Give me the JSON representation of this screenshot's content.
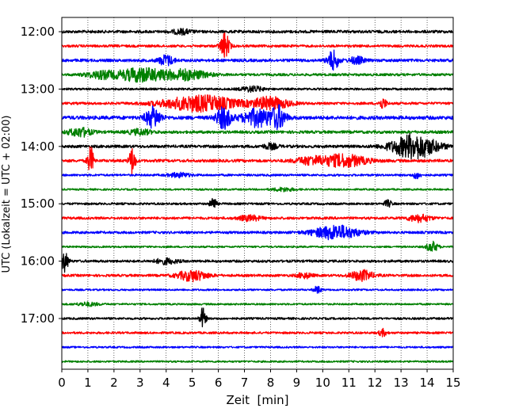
{
  "chart_data": {
    "type": "line",
    "title": "",
    "xlabel": "Zeit  [min]",
    "ylabel": "UTC (Lokalzeit = UTC + 02:00)",
    "xlim": [
      0,
      15
    ],
    "x_ticks": [
      "0",
      "1",
      "2",
      "3",
      "4",
      "5",
      "6",
      "7",
      "8",
      "9",
      "10",
      "11",
      "12",
      "13",
      "14",
      "15"
    ],
    "y_tick_labels": [
      "12:00",
      "13:00",
      "14:00",
      "15:00",
      "16:00",
      "17:00"
    ],
    "grid": {
      "x": "dotted",
      "y": "off"
    },
    "trace_colors": [
      "#000000",
      "#ff0000",
      "#0000ff",
      "#008000"
    ],
    "traces": [
      {
        "start": "12:00",
        "noise": 0.8,
        "events": [
          [
            4.6,
            0.25,
            1.3
          ]
        ]
      },
      {
        "start": "12:15",
        "noise": 0.7,
        "events": [
          [
            6.25,
            0.12,
            7.5
          ]
        ]
      },
      {
        "start": "12:30",
        "noise": 0.8,
        "events": [
          [
            4.0,
            0.2,
            3.0
          ],
          [
            10.4,
            0.15,
            5.5
          ],
          [
            11.3,
            0.2,
            2.0
          ]
        ]
      },
      {
        "start": "12:45",
        "noise": 0.7,
        "events": [
          [
            3.0,
            0.6,
            4.0
          ],
          [
            4.7,
            0.6,
            3.0
          ],
          [
            1.5,
            0.4,
            2.0
          ]
        ]
      },
      {
        "start": "13:00",
        "noise": 0.6,
        "events": [
          [
            7.3,
            0.3,
            1.5
          ]
        ]
      },
      {
        "start": "13:15",
        "noise": 0.7,
        "events": [
          [
            5.3,
            1.0,
            4.5
          ],
          [
            8.0,
            0.5,
            3.5
          ],
          [
            12.3,
            0.1,
            3.0
          ]
        ]
      },
      {
        "start": "13:30",
        "noise": 1.0,
        "events": [
          [
            3.5,
            0.2,
            6.0
          ],
          [
            6.2,
            0.2,
            6.0
          ],
          [
            7.5,
            0.4,
            5.0
          ],
          [
            8.3,
            0.2,
            6.0
          ]
        ]
      },
      {
        "start": "13:45",
        "noise": 0.8,
        "events": [
          [
            0.7,
            0.3,
            2.5
          ],
          [
            3.0,
            0.3,
            1.5
          ]
        ]
      },
      {
        "start": "14:00",
        "noise": 0.8,
        "events": [
          [
            13.5,
            0.6,
            7.0
          ],
          [
            8.0,
            0.2,
            1.5
          ]
        ]
      },
      {
        "start": "14:15",
        "noise": 0.8,
        "events": [
          [
            1.1,
            0.08,
            8.0
          ],
          [
            2.7,
            0.08,
            8.0
          ],
          [
            10.8,
            0.6,
            3.5
          ],
          [
            9.5,
            0.4,
            2.0
          ]
        ]
      },
      {
        "start": "14:30",
        "noise": 0.6,
        "events": [
          [
            4.5,
            0.3,
            1.2
          ],
          [
            13.6,
            0.1,
            2.0
          ]
        ]
      },
      {
        "start": "14:45",
        "noise": 0.5,
        "events": [
          [
            8.5,
            0.3,
            1.0
          ]
        ]
      },
      {
        "start": "15:00",
        "noise": 0.6,
        "events": [
          [
            5.8,
            0.08,
            4.0
          ],
          [
            12.5,
            0.1,
            2.0
          ]
        ]
      },
      {
        "start": "15:15",
        "noise": 0.7,
        "events": [
          [
            13.7,
            0.3,
            2.0
          ],
          [
            7.2,
            0.3,
            1.5
          ]
        ]
      },
      {
        "start": "15:30",
        "noise": 0.7,
        "events": [
          [
            10.5,
            0.6,
            4.0
          ]
        ]
      },
      {
        "start": "15:45",
        "noise": 0.5,
        "events": [
          [
            14.2,
            0.15,
            3.0
          ]
        ]
      },
      {
        "start": "16:00",
        "noise": 0.7,
        "events": [
          [
            0.1,
            0.1,
            6.0
          ],
          [
            4.0,
            0.3,
            1.5
          ]
        ]
      },
      {
        "start": "16:15",
        "noise": 0.7,
        "events": [
          [
            5.0,
            0.4,
            3.0
          ],
          [
            11.5,
            0.3,
            3.0
          ],
          [
            9.3,
            0.2,
            1.5
          ]
        ]
      },
      {
        "start": "16:30",
        "noise": 0.5,
        "events": [
          [
            9.8,
            0.1,
            2.0
          ]
        ]
      },
      {
        "start": "16:45",
        "noise": 0.5,
        "events": [
          [
            1.0,
            0.3,
            1.0
          ]
        ]
      },
      {
        "start": "17:00",
        "noise": 0.6,
        "events": [
          [
            5.4,
            0.08,
            6.0
          ]
        ]
      },
      {
        "start": "17:15",
        "noise": 0.6,
        "events": [
          [
            12.3,
            0.1,
            2.0
          ]
        ]
      },
      {
        "start": "17:30",
        "noise": 0.5,
        "events": []
      },
      {
        "start": "17:45",
        "noise": 0.5,
        "events": []
      }
    ]
  }
}
